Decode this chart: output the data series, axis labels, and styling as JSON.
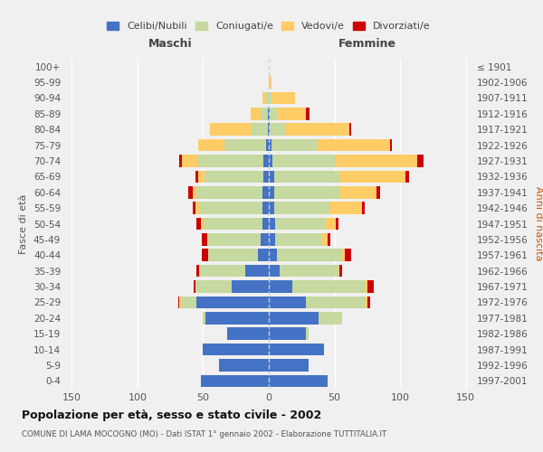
{
  "age_groups": [
    "0-4",
    "5-9",
    "10-14",
    "15-19",
    "20-24",
    "25-29",
    "30-34",
    "35-39",
    "40-44",
    "45-49",
    "50-54",
    "55-59",
    "60-64",
    "65-69",
    "70-74",
    "75-79",
    "80-84",
    "85-89",
    "90-94",
    "95-99",
    "100+"
  ],
  "birth_years": [
    "1997-2001",
    "1992-1996",
    "1987-1991",
    "1982-1986",
    "1977-1981",
    "1972-1976",
    "1967-1971",
    "1962-1966",
    "1957-1961",
    "1952-1956",
    "1947-1951",
    "1942-1946",
    "1937-1941",
    "1932-1936",
    "1927-1931",
    "1922-1926",
    "1917-1921",
    "1912-1916",
    "1907-1911",
    "1902-1906",
    "≤ 1901"
  ],
  "maschi": {
    "celibi": [
      52,
      38,
      50,
      32,
      48,
      55,
      28,
      18,
      8,
      6,
      5,
      5,
      5,
      4,
      4,
      2,
      1,
      1,
      0,
      0,
      0
    ],
    "coniugati": [
      0,
      0,
      0,
      0,
      2,
      12,
      28,
      35,
      38,
      40,
      45,
      48,
      50,
      45,
      50,
      32,
      12,
      5,
      2,
      0,
      0
    ],
    "vedovi": [
      0,
      0,
      0,
      0,
      0,
      1,
      0,
      0,
      0,
      1,
      2,
      3,
      3,
      5,
      12,
      20,
      32,
      8,
      3,
      0,
      0
    ],
    "divorziati": [
      0,
      0,
      0,
      0,
      0,
      1,
      1,
      2,
      5,
      4,
      3,
      2,
      3,
      2,
      2,
      0,
      0,
      0,
      0,
      0,
      0
    ]
  },
  "femmine": {
    "nubili": [
      45,
      30,
      42,
      28,
      38,
      28,
      18,
      8,
      6,
      5,
      5,
      4,
      4,
      4,
      3,
      2,
      1,
      1,
      0,
      0,
      0
    ],
    "coniugate": [
      0,
      0,
      0,
      2,
      18,
      45,
      55,
      45,
      50,
      35,
      38,
      42,
      50,
      50,
      48,
      35,
      12,
      5,
      2,
      0,
      0
    ],
    "vedove": [
      0,
      0,
      0,
      0,
      0,
      2,
      2,
      1,
      2,
      5,
      8,
      25,
      28,
      50,
      62,
      55,
      48,
      22,
      18,
      2,
      0
    ],
    "divorziate": [
      0,
      0,
      0,
      0,
      0,
      2,
      5,
      2,
      5,
      2,
      2,
      2,
      3,
      3,
      5,
      2,
      2,
      3,
      0,
      0,
      0
    ]
  },
  "colors": {
    "celibi_nubili": "#4472C4",
    "coniugati": "#C5D9A0",
    "vedovi": "#FFCC66",
    "divorziati": "#CC0000"
  },
  "title": "Popolazione per età, sesso e stato civile - 2002",
  "subtitle": "COMUNE DI LAMA MOCOGNO (MO) - Dati ISTAT 1° gennaio 2002 - Elaborazione TUTTITALIA.IT",
  "xlabel_left": "Maschi",
  "xlabel_right": "Femmine",
  "ylabel_left": "Fasce di età",
  "ylabel_right": "Anni di nascita",
  "xlim": 155,
  "background_color": "#f0f0f0",
  "legend_labels": [
    "Celibi/Nubili",
    "Coniugati/e",
    "Vedovi/e",
    "Divorziati/e"
  ]
}
